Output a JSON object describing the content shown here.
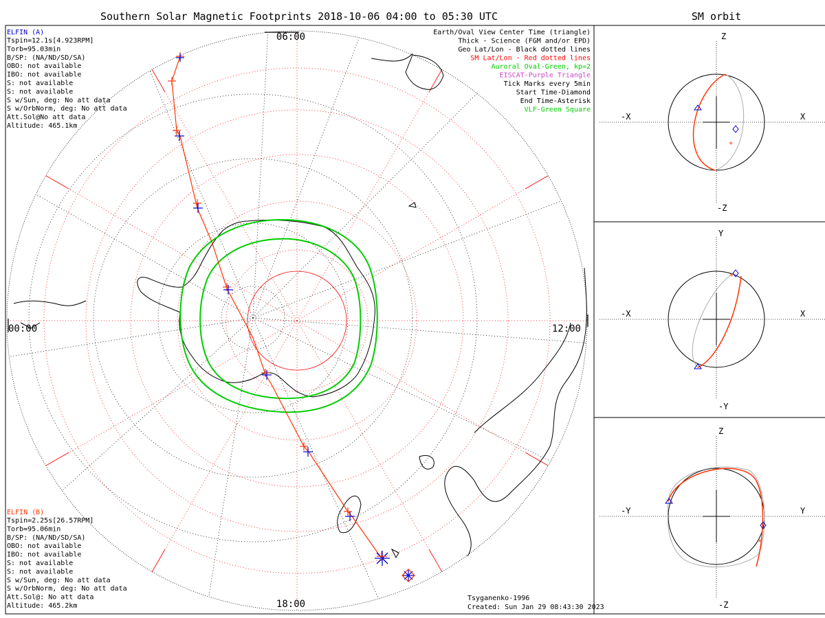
{
  "title": "Southern Solar Magnetic Footprints 2018-10-06 04:00 to 05:30 UTC",
  "orbit_panel_title": "SM orbit",
  "time_labels": {
    "top": "06:00",
    "left": "00:00",
    "right": "12:00",
    "bottom": "18:00"
  },
  "elfin_a": {
    "name": "ELFIN (A)",
    "lines": [
      "Tspin=12.1s[4.923RPM]",
      "Torb=95.03min",
      "B/SP: (NA/ND/SD/SA)",
      "OBO: not available",
      "IBO: not available",
      "S: not available",
      "S: not available",
      "S w/Sun, deg: No att data",
      "S w/OrbNorm, deg: No att data",
      "Att.Sol@No att data",
      "Altitude: 465.1km"
    ]
  },
  "elfin_b": {
    "name": "ELFIN (B)",
    "lines": [
      "Tspin=2.25s[26.57RPM]",
      "Torb=95.06min",
      "B/SP: (NA/ND/SD/SA)",
      "OBO: not available",
      "IBO: not available",
      "S: not available",
      "S: not available",
      "S w/Sun, deg: No att data",
      "S w/OrbNorm, deg: No att data",
      "Att.Sol@: No att data",
      "Altitude: 465.2km"
    ]
  },
  "legend": [
    {
      "text": "Earth/Oval View Center Time (triangle)",
      "color": "#000000"
    },
    {
      "text": "Thick - Science (FGM and/or EPD)",
      "color": "#000000"
    },
    {
      "text": "Geo Lat/Lon - Black dotted lines",
      "color": "#000000"
    },
    {
      "text": "SM Lat/Lon - Red dotted lines",
      "color": "#ff0000"
    },
    {
      "text": "Auroral Oval-Green, kp=2",
      "color": "#00cc00"
    },
    {
      "text": "EISCAT-Purple Triangle",
      "color": "#cc44cc"
    },
    {
      "text": "Tick Marks every 5min",
      "color": "#000000"
    },
    {
      "text": "Start Time-Diamond",
      "color": "#000000"
    },
    {
      "text": "End Time-Asterisk",
      "color": "#000000"
    },
    {
      "text": "VLF-Green Square",
      "color": "#00cc00"
    }
  ],
  "footer": {
    "model": "Tsyganenko-1996",
    "created": "Created: Sun Jan 29 08:43:30 2023"
  },
  "orbit_panels": [
    {
      "name": "xz",
      "top": "Z",
      "bottom": "-Z",
      "left": "-X",
      "right": "X"
    },
    {
      "name": "xy",
      "top": "Y",
      "bottom": "-Y",
      "left": "-X",
      "right": "X"
    },
    {
      "name": "yz",
      "top": "Z",
      "bottom": "-Z",
      "left": "-Y",
      "right": "Y"
    }
  ],
  "colors": {
    "track": "#ff3300",
    "tick": "#0000cc",
    "oval": "#00cc00",
    "sm_grid": "#ff0000",
    "geo_grid": "#000000",
    "orbit_gray": "#aaaaaa"
  }
}
